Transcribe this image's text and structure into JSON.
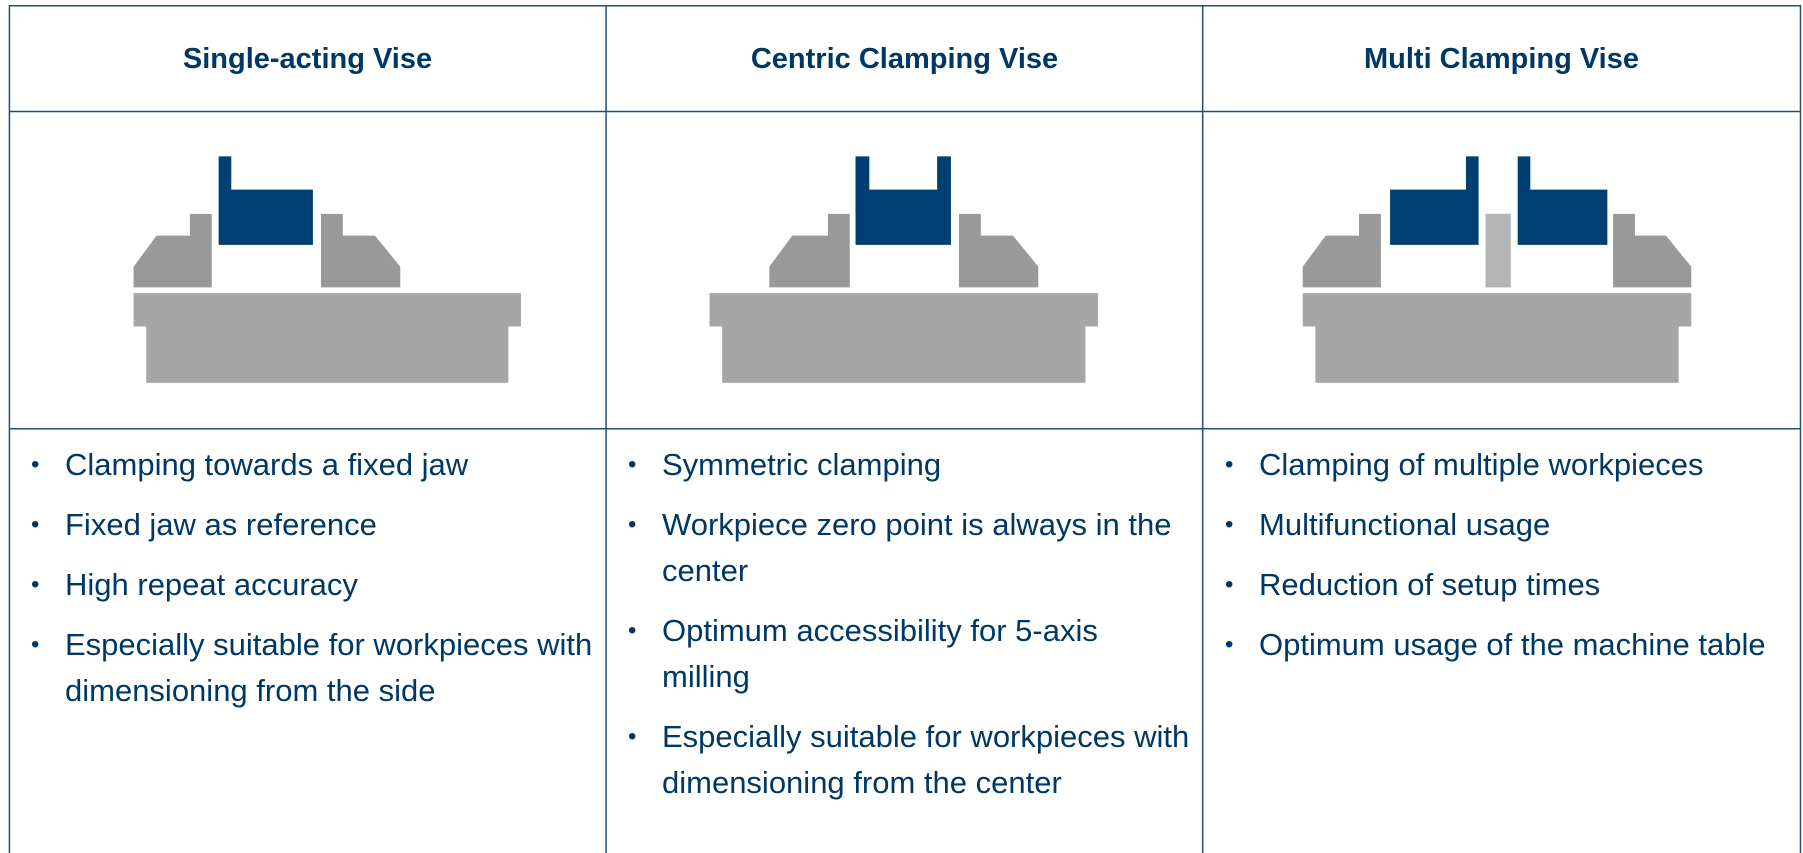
{
  "columns": [
    {
      "title": "Single-acting Vise",
      "bullets": [
        "Clamping towards a fixed jaw",
        "Fixed jaw as reference",
        "High repeat accuracy",
        "Especially suitable for workpieces with dimensioning from the side"
      ]
    },
    {
      "title": "Centric Clamping Vise",
      "bullets": [
        "Symmetric clamping",
        "Workpiece zero point is always in the center",
        "Optimum accessibility for 5-axis milling",
        "Especially suitable for workpieces with dimensioning from the center"
      ]
    },
    {
      "title": "Multi Clamping Vise",
      "bullets": [
        "Clamping of multiple workpieces",
        "Multifunctional usage",
        "Reduction of setup times",
        "Optimum usage of the machine table"
      ]
    }
  ]
}
